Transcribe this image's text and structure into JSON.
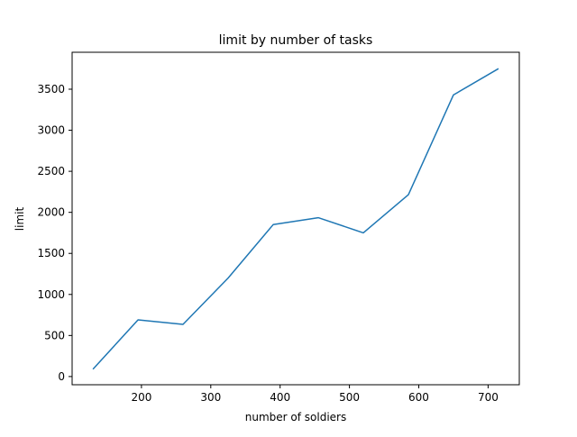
{
  "chart_data": {
    "type": "line",
    "title": "limit by number of tasks",
    "xlabel": "number of soldiers",
    "ylabel": "limit",
    "xlim": [
      100,
      745
    ],
    "ylim": [
      -100,
      3950
    ],
    "xticks": [
      200,
      300,
      400,
      500,
      600,
      700
    ],
    "yticks": [
      0,
      500,
      1000,
      1500,
      2000,
      2500,
      3000,
      3500
    ],
    "grid": false,
    "legend": "none",
    "series": [
      {
        "color": "#1f77b4",
        "x": [
          130,
          195,
          260,
          325,
          390,
          455,
          520,
          585,
          650,
          715
        ],
        "y": [
          90,
          690,
          635,
          1200,
          1850,
          1935,
          1750,
          2215,
          3430,
          3750
        ]
      }
    ]
  }
}
